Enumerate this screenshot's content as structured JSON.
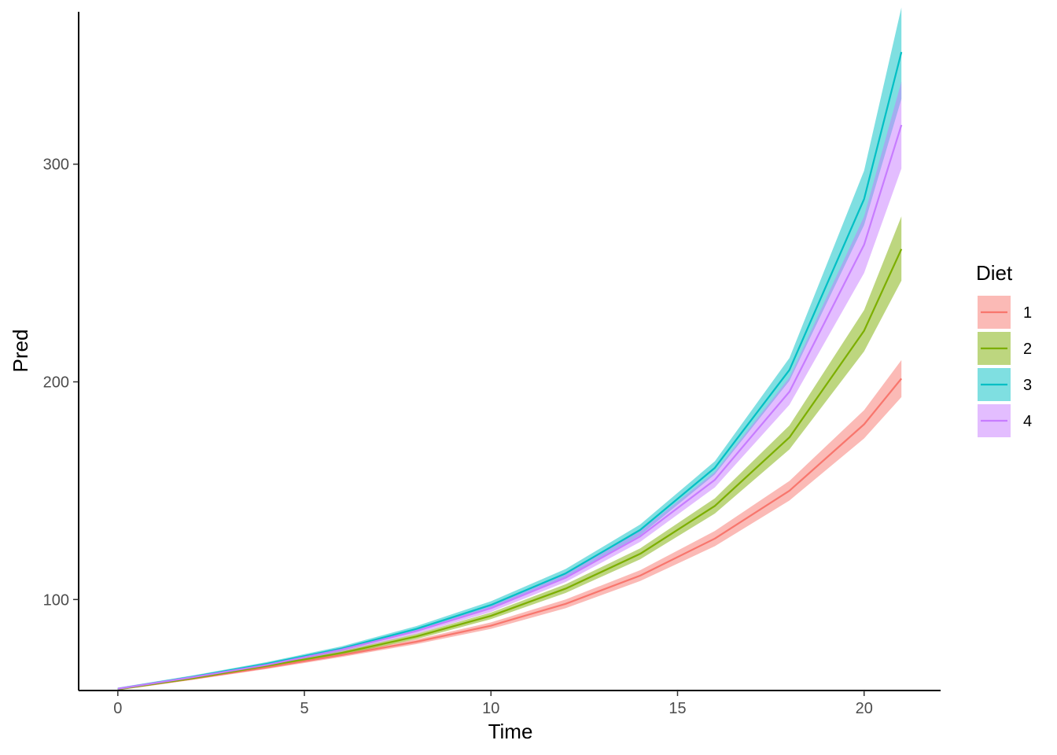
{
  "chart_data": {
    "type": "line",
    "xlabel": "Time",
    "ylabel": "Pred",
    "xlim": [
      -1.05,
      22.05
    ],
    "ylim": [
      58.2,
      370
    ],
    "xticks": [
      0,
      5,
      10,
      15,
      20
    ],
    "yticks": [
      100,
      200,
      300
    ],
    "grid": false,
    "legend": {
      "title": "Diet",
      "position": "right"
    },
    "x": [
      0,
      2,
      4,
      6,
      8,
      10,
      12,
      14,
      16,
      18,
      20,
      21
    ],
    "series": [
      {
        "name": "1",
        "color": "#F8766D",
        "values": [
          58.8,
          63.6,
          68.8,
          74.5,
          80.6,
          88.0,
          98.0,
          111.0,
          128.0,
          150.0,
          180.5,
          201.5
        ],
        "lower": [
          58.3,
          63.1,
          68.1,
          73.6,
          79.5,
          86.5,
          96.0,
          108.5,
          124.5,
          145.5,
          174.0,
          193.0
        ],
        "upper": [
          59.3,
          64.1,
          69.5,
          75.4,
          81.7,
          89.5,
          100.0,
          113.5,
          131.5,
          154.5,
          187.0,
          210.0
        ]
      },
      {
        "name": "2",
        "color": "#7CAE00",
        "values": [
          58.8,
          63.8,
          69.5,
          75.5,
          83.0,
          92.5,
          105.0,
          121.0,
          143.0,
          174.5,
          223.5,
          261.0
        ],
        "lower": [
          58.3,
          63.2,
          68.8,
          74.5,
          81.8,
          91.0,
          103.0,
          118.5,
          139.5,
          169.0,
          214.0,
          246.5
        ],
        "upper": [
          59.3,
          64.4,
          70.2,
          76.5,
          84.2,
          94.0,
          107.0,
          123.5,
          146.5,
          180.0,
          233.0,
          276.0
        ]
      },
      {
        "name": "3",
        "color": "#00BFC4",
        "values": [
          59.0,
          64.5,
          70.5,
          77.5,
          86.5,
          97.5,
          112.0,
          132.0,
          160.5,
          205.5,
          284.0,
          351.5
        ],
        "lower": [
          58.5,
          63.9,
          69.7,
          76.5,
          85.2,
          95.8,
          110.0,
          129.5,
          157.5,
          200.5,
          272.0,
          330.0
        ],
        "upper": [
          59.5,
          65.1,
          71.3,
          78.5,
          87.8,
          99.2,
          114.0,
          134.5,
          163.5,
          211.0,
          297.0,
          372.0
        ]
      },
      {
        "name": "4",
        "color": "#C77CFF",
        "values": [
          59.0,
          64.3,
          70.0,
          77.0,
          85.5,
          96.0,
          110.0,
          129.0,
          155.0,
          195.5,
          263.0,
          318.0
        ],
        "lower": [
          58.5,
          63.7,
          69.3,
          76.0,
          84.2,
          94.3,
          108.0,
          126.5,
          151.5,
          189.5,
          250.0,
          298.0
        ],
        "upper": [
          59.5,
          64.9,
          70.7,
          78.0,
          86.8,
          97.7,
          112.0,
          131.5,
          158.5,
          202.0,
          276.0,
          338.0
        ]
      }
    ]
  }
}
